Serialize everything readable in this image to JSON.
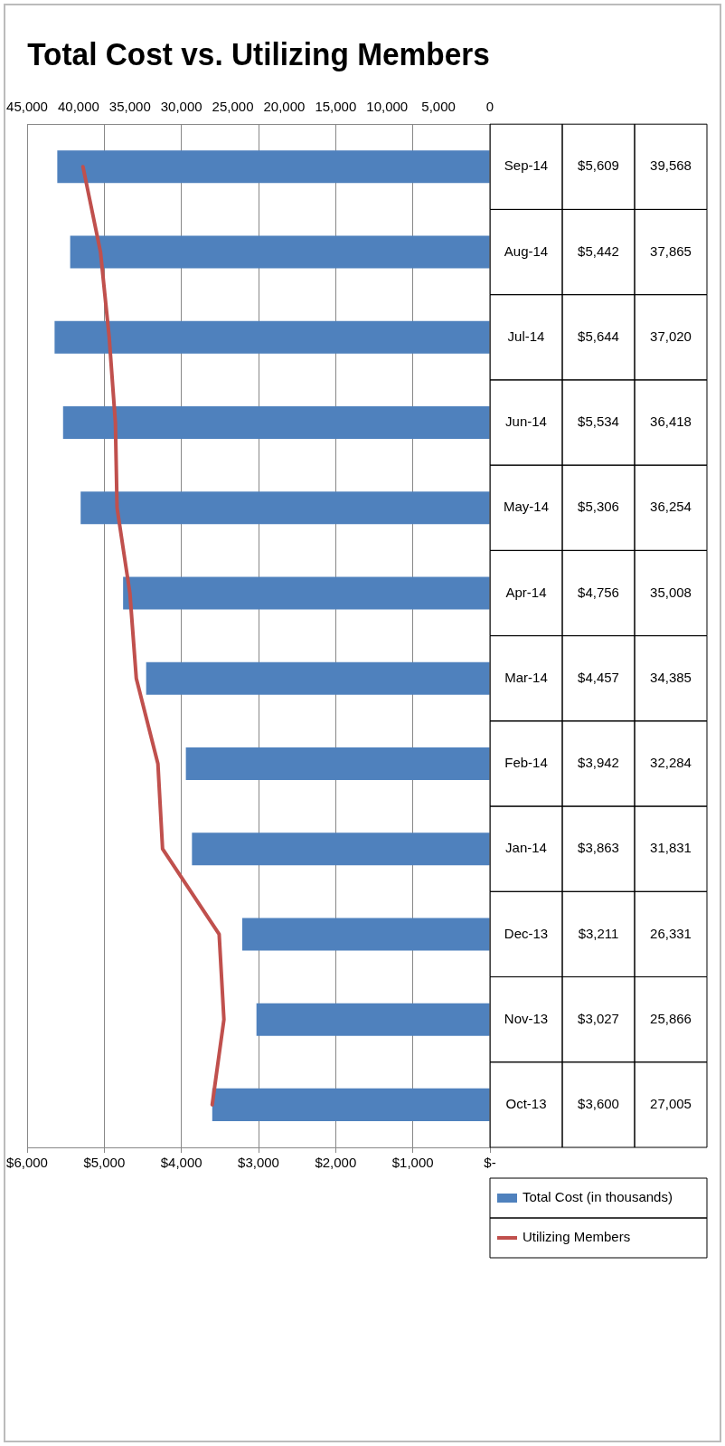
{
  "chart_data": {
    "type": "bar",
    "orientation": "horizontal",
    "title": "Total Cost vs. Utilizing Members",
    "categories": [
      "Sep-14",
      "Aug-14",
      "Jul-14",
      "Jun-14",
      "May-14",
      "Apr-14",
      "Mar-14",
      "Feb-14",
      "Jan-14",
      "Dec-13",
      "Nov-13",
      "Oct-13"
    ],
    "series": [
      {
        "name": "Total Cost (in thousands)",
        "color": "#4f81bd",
        "values": [
          5609,
          5442,
          5644,
          5534,
          5306,
          4756,
          4457,
          3942,
          3863,
          3211,
          3027,
          3600
        ],
        "value_labels": [
          "$5,609",
          "$5,442",
          "$5,644",
          "$5,534",
          "$5,306",
          "$4,756",
          "$4,457",
          "$3,942",
          "$3,863",
          "$3,211",
          "$3,027",
          "$3,600"
        ]
      },
      {
        "name": "Utilizing Members",
        "type": "line",
        "axis": "x2",
        "color": "#c0504d",
        "values": [
          39568,
          37865,
          37020,
          36418,
          36254,
          35008,
          34385,
          32284,
          31831,
          26331,
          25866,
          27005
        ],
        "value_labels": [
          "39,568",
          "37,865",
          "37,020",
          "36,418",
          "36,254",
          "35,008",
          "34,385",
          "32,284",
          "31,831",
          "26,331",
          "25,866",
          "27,005"
        ]
      }
    ],
    "xlim": [
      6000,
      0
    ],
    "xticks": [
      {
        "value": 6000,
        "label": "$6,000"
      },
      {
        "value": 5000,
        "label": "$5,000"
      },
      {
        "value": 4000,
        "label": "$4,000"
      },
      {
        "value": 3000,
        "label": "$3,000"
      },
      {
        "value": 2000,
        "label": "$2,000"
      },
      {
        "value": 1000,
        "label": "$1,000"
      },
      {
        "value": 0,
        "label": "$-"
      }
    ],
    "x2lim": [
      45000,
      0
    ],
    "x2ticks": [
      {
        "value": 45000,
        "label": "45,000"
      },
      {
        "value": 40000,
        "label": "40,000"
      },
      {
        "value": 35000,
        "label": "35,000"
      },
      {
        "value": 30000,
        "label": "30,000"
      },
      {
        "value": 25000,
        "label": "25,000"
      },
      {
        "value": 20000,
        "label": "20,000"
      },
      {
        "value": 15000,
        "label": "15,000"
      },
      {
        "value": 10000,
        "label": "10,000"
      },
      {
        "value": 5000,
        "label": "5,000"
      },
      0
    ],
    "grid": "x",
    "legend": "bottom right",
    "marker": "none",
    "line_style": "solid"
  }
}
